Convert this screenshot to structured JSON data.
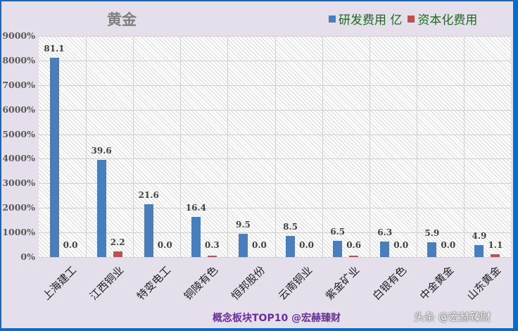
{
  "chart_data": {
    "type": "bar",
    "title": "黄金",
    "categories": [
      "上海建工",
      "江西铜业",
      "特变电工",
      "铜陵有色",
      "恒邦股份",
      "云南铜业",
      "紫金矿业",
      "白银有色",
      "中金黄金",
      "山东黄金"
    ],
    "series": [
      {
        "name": "研发费用 亿",
        "color": "#4a7ebb",
        "values": [
          81.1,
          39.6,
          21.6,
          16.4,
          9.5,
          8.5,
          6.5,
          6.3,
          5.9,
          4.9
        ],
        "labels": [
          "81.1",
          "39.6",
          "21.6",
          "16.4",
          "9.5",
          "8.5",
          "6.5",
          "6.3",
          "5.9",
          "4.9"
        ]
      },
      {
        "name": "资本化费用",
        "color": "#c0504d",
        "values": [
          0.0,
          2.2,
          0.0,
          0.3,
          0.0,
          0.0,
          0.6,
          0.0,
          0.0,
          1.1
        ],
        "labels": [
          "0.0",
          "2.2",
          "0.0",
          "0.3",
          "0.0",
          "0.0",
          "0.6",
          "0.0",
          "0.0",
          "1.1"
        ]
      }
    ],
    "yticks": [
      "0%",
      "1000%",
      "2000%",
      "3000%",
      "4000%",
      "5000%",
      "6000%",
      "7000%",
      "8000%",
      "9000%"
    ],
    "ylim": [
      0,
      90
    ],
    "xlabel": "",
    "ylabel": "",
    "grid": true,
    "legend_position": "top-right"
  },
  "footer": "概念板块TOP10 @宏赫臻财",
  "watermark": "头条 @宏赫臻财"
}
